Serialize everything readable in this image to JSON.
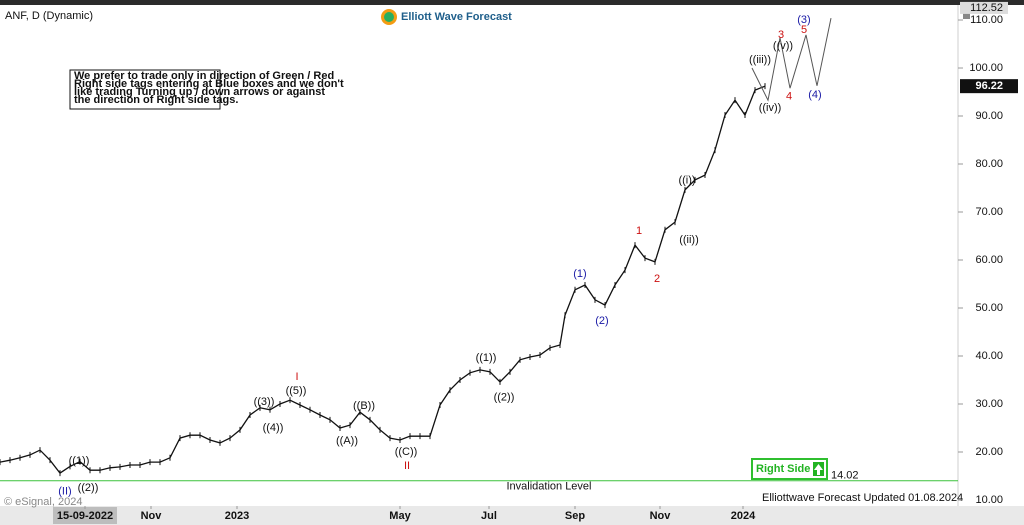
{
  "chart_data": {
    "type": "line",
    "title": "ANF, D (Dynamic)",
    "logo": "Elliott Wave Forecast",
    "note": [
      "We prefer to trade only in direction of Green / Red",
      "Right side tags entering at Blue boxes and we don't",
      "like trading Turning up / down arrows or against",
      "the direction of Right side tags."
    ],
    "footer": "Elliottwave Forecast Updated 01.08.2024",
    "copyright": "© eSignal, 2024",
    "right_side_tag": "Right Side",
    "color": "#111111",
    "x": [
      0,
      1,
      2,
      3,
      4,
      5,
      6,
      7,
      8,
      9,
      10,
      11,
      12,
      13,
      14,
      15,
      16,
      17,
      18,
      19,
      20,
      21,
      22,
      23,
      24,
      25,
      26,
      27,
      28,
      29,
      30,
      31,
      32,
      33,
      34,
      35,
      36,
      37,
      38,
      39,
      40,
      41,
      42,
      43,
      44,
      45,
      46,
      47,
      48,
      49,
      50,
      51,
      52,
      53,
      54,
      55,
      56,
      56.5,
      57.5,
      58.5,
      59.5,
      60.5,
      61.5,
      62.5,
      63.5,
      64.5,
      65.5,
      66.5,
      67.5,
      68.5,
      69.5,
      70.5,
      71.5,
      72.5,
      73.5,
      74.5,
      75.5,
      76.5
    ],
    "values": [
      17.9,
      18.3,
      18.8,
      19.4,
      20.4,
      18.3,
      15.6,
      17,
      18,
      16.2,
      16.2,
      16.7,
      16.9,
      17.3,
      17.3,
      17.9,
      17.9,
      18.8,
      22.9,
      23.5,
      23.5,
      22.5,
      21.9,
      22.9,
      24.6,
      27.7,
      29.2,
      28.8,
      30,
      30.8,
      29.8,
      28.8,
      27.7,
      26.7,
      25,
      25.6,
      28.3,
      26.7,
      24.6,
      22.9,
      22.5,
      23.3,
      23.3,
      23.3,
      29.8,
      32.9,
      35,
      36.5,
      37.1,
      36.7,
      34.6,
      36.7,
      39.2,
      39.8,
      40.2,
      41.7,
      42.3,
      48.5,
      53.8,
      54.8,
      51.7,
      50.6,
      54.8,
      57.9,
      63.1,
      60.4,
      59.6,
      66.3,
      67.9,
      74.6,
      76.7,
      77.7,
      82.9,
      90.2,
      93.3,
      90.2,
      95.4,
      96.22
    ],
    "projection": {
      "color": "#555555",
      "x": [
        75.2,
        76.8,
        78,
        79,
        80.6,
        81.7,
        83.1
      ],
      "values": [
        100,
        93.3,
        106.3,
        95.8,
        106.9,
        96.3,
        110.4
      ]
    },
    "xlim": [
      0,
      95.8
    ],
    "xticks": [
      {
        "value": 8.5,
        "label": "15-09-2022"
      },
      {
        "value": 15.1,
        "label": "Nov"
      },
      {
        "value": 23.7,
        "label": "2023"
      },
      {
        "value": 40.0,
        "label": "May"
      },
      {
        "value": 48.9,
        "label": "Jul"
      },
      {
        "value": 57.5,
        "label": "Sep"
      },
      {
        "value": 66.0,
        "label": "Nov"
      },
      {
        "value": 74.3,
        "label": "2024"
      }
    ],
    "ylim": [
      8.75,
      112.92
    ],
    "yticks": [
      {
        "value": 10,
        "label": "10.00"
      },
      {
        "value": 20,
        "label": "20.00"
      },
      {
        "value": 30,
        "label": "30.00"
      },
      {
        "value": 40,
        "label": "40.00"
      },
      {
        "value": 50,
        "label": "50.00"
      },
      {
        "value": 60,
        "label": "60.00"
      },
      {
        "value": 70,
        "label": "70.00"
      },
      {
        "value": 80,
        "label": "80.00"
      },
      {
        "value": 90,
        "label": "90.00"
      },
      {
        "value": 100,
        "label": "100.00"
      },
      {
        "value": 110,
        "label": "110.00"
      }
    ],
    "high_marker": {
      "value": 112.52,
      "label": "112.52"
    },
    "last_price": {
      "value": 96.22,
      "label": "96.22"
    },
    "invalidation": {
      "value": 14.02,
      "label": "14.02",
      "text": "Invalidation Level",
      "color": "#3cc23c"
    },
    "annotations": [
      {
        "text": "(II)",
        "x": 6.5,
        "y": 11.7,
        "color": "#1a1aa6"
      },
      {
        "text": "((1))",
        "x": 7.9,
        "y": 18.1,
        "color": "#111111"
      },
      {
        "text": "((2))",
        "x": 8.8,
        "y": 12.5,
        "color": "#111111"
      },
      {
        "text": "((3))",
        "x": 26.4,
        "y": 30.4,
        "color": "#111111"
      },
      {
        "text": "((4))",
        "x": 27.3,
        "y": 25,
        "color": "#111111"
      },
      {
        "text": "((5))",
        "x": 29.6,
        "y": 32.7,
        "color": "#111111"
      },
      {
        "text": "I",
        "x": 29.7,
        "y": 35.6,
        "color": "#cc1010"
      },
      {
        "text": "((A))",
        "x": 34.7,
        "y": 22.3,
        "color": "#111111"
      },
      {
        "text": "((B))",
        "x": 36.4,
        "y": 29.6,
        "color": "#111111"
      },
      {
        "text": "((C))",
        "x": 40.6,
        "y": 20,
        "color": "#111111"
      },
      {
        "text": "II",
        "x": 40.7,
        "y": 17.1,
        "color": "#cc1010"
      },
      {
        "text": "((1))",
        "x": 48.6,
        "y": 39.6,
        "color": "#111111"
      },
      {
        "text": "((2))",
        "x": 50.4,
        "y": 31.3,
        "color": "#111111"
      },
      {
        "text": "(1)",
        "x": 58,
        "y": 57.1,
        "color": "#1a1aa6"
      },
      {
        "text": "(2)",
        "x": 60.2,
        "y": 47.3,
        "color": "#1a1aa6"
      },
      {
        "text": "1",
        "x": 63.9,
        "y": 66,
        "color": "#cc1010"
      },
      {
        "text": "2",
        "x": 65.7,
        "y": 56,
        "color": "#cc1010"
      },
      {
        "text": "((i))",
        "x": 68.7,
        "y": 76.5,
        "color": "#111111"
      },
      {
        "text": "((ii))",
        "x": 68.9,
        "y": 64.2,
        "color": "#111111"
      },
      {
        "text": "((iii))",
        "x": 76,
        "y": 101.7,
        "color": "#111111"
      },
      {
        "text": "((iv))",
        "x": 77,
        "y": 91.7,
        "color": "#111111"
      },
      {
        "text": "((v))",
        "x": 78.3,
        "y": 104.6,
        "color": "#111111"
      },
      {
        "text": "3",
        "x": 78.1,
        "y": 106.9,
        "color": "#cc1010"
      },
      {
        "text": "4",
        "x": 78.9,
        "y": 94,
        "color": "#cc1010"
      },
      {
        "text": "5",
        "x": 80.4,
        "y": 107.9,
        "color": "#cc1010"
      },
      {
        "text": "(3)",
        "x": 80.4,
        "y": 110,
        "color": "#1a1aa6"
      },
      {
        "text": "(4)",
        "x": 81.5,
        "y": 94.4,
        "color": "#1a1aa6"
      }
    ]
  }
}
